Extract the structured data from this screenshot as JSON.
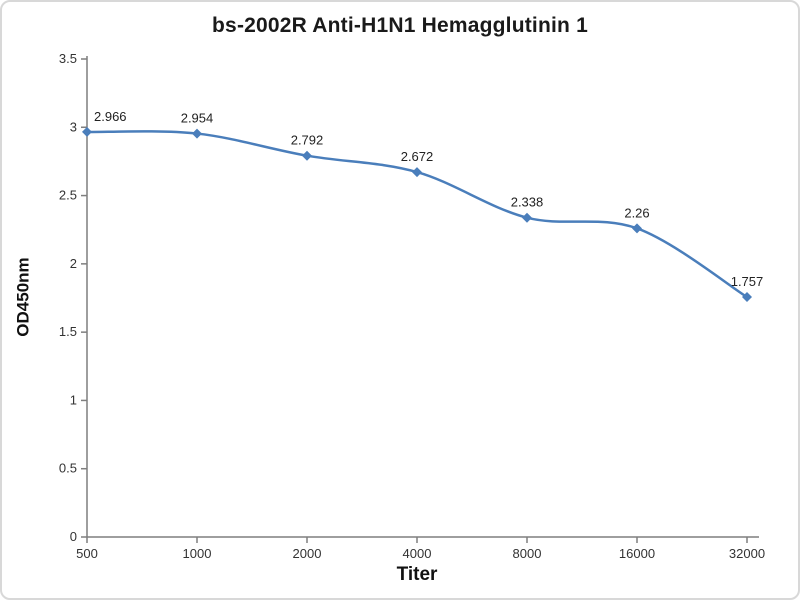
{
  "chart_data": {
    "type": "line",
    "title": "bs-2002R Anti-H1N1 Hemagglutinin 1",
    "xlabel": "Titer",
    "ylabel": "OD450nm",
    "categories": [
      "500",
      "1000",
      "2000",
      "4000",
      "8000",
      "16000",
      "32000"
    ],
    "values": [
      2.966,
      2.954,
      2.792,
      2.672,
      2.338,
      2.26,
      1.757
    ],
    "point_labels": [
      "2.966",
      "2.954",
      "2.792",
      "2.672",
      "2.338",
      "2.26",
      "1.757"
    ],
    "ylim": [
      0,
      3.5
    ],
    "ytick_step": 0.5,
    "yticks": [
      "0",
      "0.5",
      "1",
      "1.5",
      "2",
      "2.5",
      "3",
      "3.5"
    ],
    "line_color": "#4a7ebb",
    "axis_color": "#7f7f7f",
    "marker": "diamond",
    "grid": false,
    "legend": "none"
  }
}
